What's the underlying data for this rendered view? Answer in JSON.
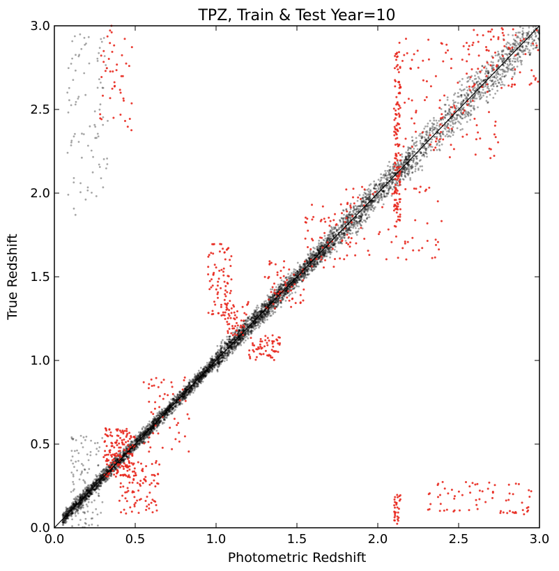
{
  "chart_data": {
    "type": "scatter",
    "title": "TPZ, Train & Test Year=10",
    "xlabel": "Photometric Redshift",
    "ylabel": "True Redshift",
    "xlim": [
      0.0,
      3.0
    ],
    "ylim": [
      0.0,
      3.0
    ],
    "xticks": [
      "0.0",
      "0.5",
      "1.0",
      "1.5",
      "2.0",
      "2.5",
      "3.0"
    ],
    "yticks": [
      "0.0",
      "0.5",
      "1.0",
      "1.5",
      "2.0",
      "2.5",
      "3.0"
    ],
    "grid": false,
    "legend": "none",
    "reference_line": {
      "from": [
        0,
        0
      ],
      "to": [
        3,
        3
      ],
      "color": "#000000"
    },
    "series": [
      {
        "color": "#000000",
        "opacity": 0.35,
        "clusters": [
          {
            "x": [
              0.05,
              1.0
            ],
            "y_offset": [
              -0.06,
              0.06
            ],
            "count": 2400
          },
          {
            "x": [
              1.0,
              1.7
            ],
            "y_offset": [
              -0.09,
              0.09
            ],
            "count": 1900
          },
          {
            "x": [
              1.7,
              2.2
            ],
            "y_offset": [
              -0.13,
              0.13
            ],
            "count": 900
          },
          {
            "x": [
              2.2,
              3.0
            ],
            "y_offset": [
              -0.18,
              0.18
            ],
            "count": 900
          },
          {
            "x": [
              0.08,
              0.33
            ],
            "y": [
              1.85,
              2.95
            ],
            "count": 90
          },
          {
            "x": [
              0.1,
              0.3
            ],
            "y": [
              0.0,
              0.55
            ],
            "count": 120
          }
        ]
      },
      {
        "color": "#e8281e",
        "opacity": 0.9,
        "clusters": [
          {
            "x": [
              0.3,
              0.5
            ],
            "y": [
              0.3,
              0.6
            ],
            "count": 160
          },
          {
            "x": [
              0.4,
              0.65
            ],
            "y": [
              0.08,
              0.4
            ],
            "count": 90
          },
          {
            "x": [
              0.28,
              0.48
            ],
            "y": [
              2.35,
              3.0
            ],
            "count": 45
          },
          {
            "x": [
              0.95,
              1.1
            ],
            "y": [
              1.25,
              1.7
            ],
            "count": 80
          },
          {
            "x": [
              1.05,
              1.2
            ],
            "y": [
              1.15,
              1.35
            ],
            "count": 50
          },
          {
            "x": [
              1.2,
              1.4
            ],
            "y": [
              1.0,
              1.15
            ],
            "count": 60
          },
          {
            "x": [
              1.3,
              1.55
            ],
            "y": [
              1.3,
              1.6
            ],
            "count": 60
          },
          {
            "x": [
              1.55,
              1.85
            ],
            "y": [
              1.55,
              1.95
            ],
            "count": 60
          },
          {
            "x": [
              2.1,
              2.14
            ],
            "y": [
              1.8,
              2.85
            ],
            "count": 140
          },
          {
            "x": [
              2.1,
              2.14
            ],
            "y": [
              0.02,
              0.2
            ],
            "count": 30
          },
          {
            "x": [
              2.3,
              2.95
            ],
            "y": [
              0.08,
              0.28
            ],
            "count": 70
          },
          {
            "x": [
              2.1,
              2.75
            ],
            "y": [
              2.2,
              2.95
            ],
            "count": 110
          },
          {
            "x": [
              2.55,
              3.0
            ],
            "y": [
              2.6,
              3.0
            ],
            "count": 70
          },
          {
            "x": [
              1.8,
              2.4
            ],
            "y": [
              1.6,
              2.05
            ],
            "count": 60
          },
          {
            "x": [
              0.55,
              0.85
            ],
            "y": [
              0.45,
              0.9
            ],
            "count": 50
          }
        ]
      }
    ]
  }
}
